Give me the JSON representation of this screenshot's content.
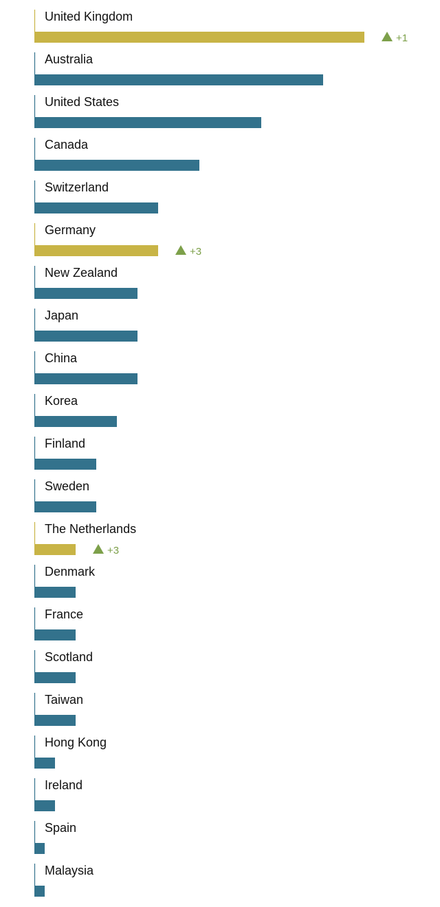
{
  "chart_data": {
    "type": "bar",
    "orientation": "horizontal",
    "categories": [
      "United Kingdom",
      "Australia",
      "United States",
      "Canada",
      "Switzerland",
      "Germany",
      "New Zealand",
      "Japan",
      "China",
      "Korea",
      "Finland",
      "Sweden",
      "The Netherlands",
      "Denmark",
      "France",
      "Scotland",
      "Taiwan",
      "Hong Kong",
      "Ireland",
      "Spain",
      "Malaysia"
    ],
    "values": [
      16,
      14,
      11,
      8,
      6,
      6,
      5,
      5,
      5,
      4,
      3,
      3,
      2,
      2,
      2,
      2,
      2,
      1,
      1,
      0.5,
      0.5
    ],
    "highlighted": [
      "United Kingdom",
      "Germany",
      "The Netherlands"
    ],
    "changes": [
      {
        "category": "United Kingdom",
        "direction": "up",
        "text": "+1"
      },
      {
        "category": "Germany",
        "direction": "up",
        "text": "+3"
      },
      {
        "category": "The Netherlands",
        "direction": "up",
        "text": "+3"
      }
    ],
    "grid": false,
    "axis_labels_shown": false
  },
  "colors": {
    "default_bar": "#33728c",
    "highlight_bar": "#c8b446",
    "change_up": "#7da04a",
    "label_text": "#111111"
  }
}
